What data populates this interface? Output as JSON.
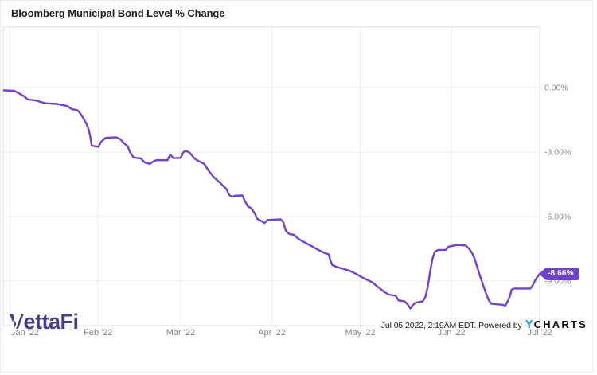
{
  "header": {
    "title": "Bloomberg Municipal Bond Level % Change"
  },
  "chart_data": {
    "type": "line",
    "title": "Bloomberg Municipal Bond Level % Change",
    "series_name": "Bloomberg Municipal Bond Level % Change",
    "x_unit": "days since 2021-12-31",
    "x_range_dates": [
      "2021-12-31",
      "2022-07-01"
    ],
    "y_unit": "percent change",
    "ylim": [
      -11.1,
      2.8
    ],
    "grid": true,
    "legend": "none",
    "line_color": "#7142D1",
    "last_value": -8.66,
    "last_value_label": "-8.66%",
    "x_ticks": [
      {
        "day": 2,
        "label": "Jan '22"
      },
      {
        "day": 32,
        "label": "Feb '22"
      },
      {
        "day": 60,
        "label": "Mar '22"
      },
      {
        "day": 91,
        "label": "Apr '22"
      },
      {
        "day": 121,
        "label": "May '22"
      },
      {
        "day": 152,
        "label": "Jun '22"
      },
      {
        "day": 182,
        "label": "Jul '22"
      }
    ],
    "y_ticks": [
      {
        "value": 0,
        "label": "0.00%"
      },
      {
        "value": -3,
        "label": "-3.00%"
      },
      {
        "value": -6,
        "label": "-6.00%"
      },
      {
        "value": -9,
        "label": "-9.00%"
      }
    ],
    "points": [
      [
        0,
        -0.13
      ],
      [
        3.5,
        -0.15
      ],
      [
        5.5,
        -0.3
      ],
      [
        7,
        -0.42
      ],
      [
        8,
        -0.55
      ],
      [
        11,
        -0.6
      ],
      [
        12.5,
        -0.67
      ],
      [
        14,
        -0.73
      ],
      [
        18,
        -0.76
      ],
      [
        21.5,
        -0.86
      ],
      [
        23,
        -1.0
      ],
      [
        25,
        -1.06
      ],
      [
        26,
        -1.22
      ],
      [
        27,
        -1.44
      ],
      [
        28,
        -1.68
      ],
      [
        28.8,
        -1.96
      ],
      [
        29.3,
        -2.28
      ],
      [
        29.8,
        -2.7
      ],
      [
        32,
        -2.76
      ],
      [
        33,
        -2.52
      ],
      [
        34.5,
        -2.34
      ],
      [
        38,
        -2.31
      ],
      [
        39.5,
        -2.4
      ],
      [
        41,
        -2.62
      ],
      [
        42,
        -2.73
      ],
      [
        42.8,
        -3.0
      ],
      [
        44,
        -3.25
      ],
      [
        46.5,
        -3.3
      ],
      [
        47.8,
        -3.48
      ],
      [
        49.5,
        -3.55
      ],
      [
        51,
        -3.42
      ],
      [
        52,
        -3.37
      ],
      [
        55.5,
        -3.38
      ],
      [
        56.5,
        -3.12
      ],
      [
        57.5,
        -3.28
      ],
      [
        60,
        -3.27
      ],
      [
        61,
        -3.0
      ],
      [
        61.8,
        -2.95
      ],
      [
        63,
        -3.02
      ],
      [
        64,
        -3.18
      ],
      [
        65,
        -3.33
      ],
      [
        66.5,
        -3.45
      ],
      [
        68,
        -3.55
      ],
      [
        69,
        -3.76
      ],
      [
        70,
        -3.95
      ],
      [
        71,
        -4.13
      ],
      [
        72.5,
        -4.32
      ],
      [
        74,
        -4.51
      ],
      [
        75.5,
        -4.72
      ],
      [
        76.5,
        -5.0
      ],
      [
        77.5,
        -5.08
      ],
      [
        78.5,
        -5.03
      ],
      [
        81,
        -5.02
      ],
      [
        81.8,
        -5.28
      ],
      [
        82.8,
        -5.52
      ],
      [
        84,
        -5.62
      ],
      [
        85.3,
        -5.88
      ],
      [
        86,
        -6.1
      ],
      [
        87.5,
        -6.22
      ],
      [
        88.5,
        -6.3
      ],
      [
        89.5,
        -6.16
      ],
      [
        94,
        -6.13
      ],
      [
        94.8,
        -6.25
      ],
      [
        95.8,
        -6.68
      ],
      [
        97,
        -6.82
      ],
      [
        98.5,
        -6.85
      ],
      [
        99.5,
        -6.98
      ],
      [
        101,
        -7.12
      ],
      [
        102.5,
        -7.23
      ],
      [
        104,
        -7.34
      ],
      [
        105.8,
        -7.48
      ],
      [
        107.5,
        -7.6
      ],
      [
        109,
        -7.7
      ],
      [
        110.3,
        -7.76
      ],
      [
        110.9,
        -8.05
      ],
      [
        111.5,
        -8.25
      ],
      [
        113,
        -8.35
      ],
      [
        115,
        -8.42
      ],
      [
        117.5,
        -8.53
      ],
      [
        119.5,
        -8.66
      ],
      [
        121,
        -8.78
      ],
      [
        122.5,
        -8.89
      ],
      [
        124,
        -8.98
      ],
      [
        125.3,
        -9.08
      ],
      [
        126.3,
        -9.2
      ],
      [
        128,
        -9.38
      ],
      [
        129.3,
        -9.52
      ],
      [
        130.7,
        -9.63
      ],
      [
        133,
        -9.68
      ],
      [
        134,
        -9.9
      ],
      [
        136,
        -9.94
      ],
      [
        137.2,
        -10.1
      ],
      [
        138,
        -10.28
      ],
      [
        138.8,
        -10.13
      ],
      [
        139.8,
        -10.0
      ],
      [
        142.2,
        -9.95
      ],
      [
        143.1,
        -9.75
      ],
      [
        143.9,
        -9.28
      ],
      [
        144.7,
        -8.6
      ],
      [
        145.5,
        -7.97
      ],
      [
        146.3,
        -7.64
      ],
      [
        147.5,
        -7.55
      ],
      [
        150,
        -7.55
      ],
      [
        151,
        -7.4
      ],
      [
        154,
        -7.32
      ],
      [
        156.8,
        -7.35
      ],
      [
        158,
        -7.5
      ],
      [
        159,
        -7.7
      ],
      [
        159.8,
        -7.95
      ],
      [
        160.6,
        -8.3
      ],
      [
        161.4,
        -8.65
      ],
      [
        162.4,
        -9.05
      ],
      [
        163.5,
        -9.5
      ],
      [
        164.6,
        -9.88
      ],
      [
        165.5,
        -10.06
      ],
      [
        169,
        -10.1
      ],
      [
        170.3,
        -10.14
      ],
      [
        171.1,
        -9.94
      ],
      [
        171.9,
        -9.67
      ],
      [
        172.4,
        -9.4
      ],
      [
        173.3,
        -9.35
      ],
      [
        178.8,
        -9.35
      ],
      [
        179.7,
        -9.17
      ],
      [
        180.5,
        -8.94
      ],
      [
        181.3,
        -8.78
      ],
      [
        182,
        -8.66
      ]
    ]
  },
  "footer": {
    "brand_v": "V",
    "brand_rest": "ettaFi",
    "timestamp": "Jul 05 2022, 2:19AM EDT. Powered by",
    "ycharts_y": "Y",
    "ycharts_charts": "CHARTS"
  },
  "colors": {
    "line": "#7142D1",
    "badge_bg": "#6F41CE",
    "gridline": "#EDEDED",
    "plot_border": "#DFDFDF",
    "axis_label": "#8A8A8A",
    "title_text": "#1F1F1F",
    "vettafi_purple": "#4A3B8C",
    "ycharts_blue": "#14A0EE"
  }
}
